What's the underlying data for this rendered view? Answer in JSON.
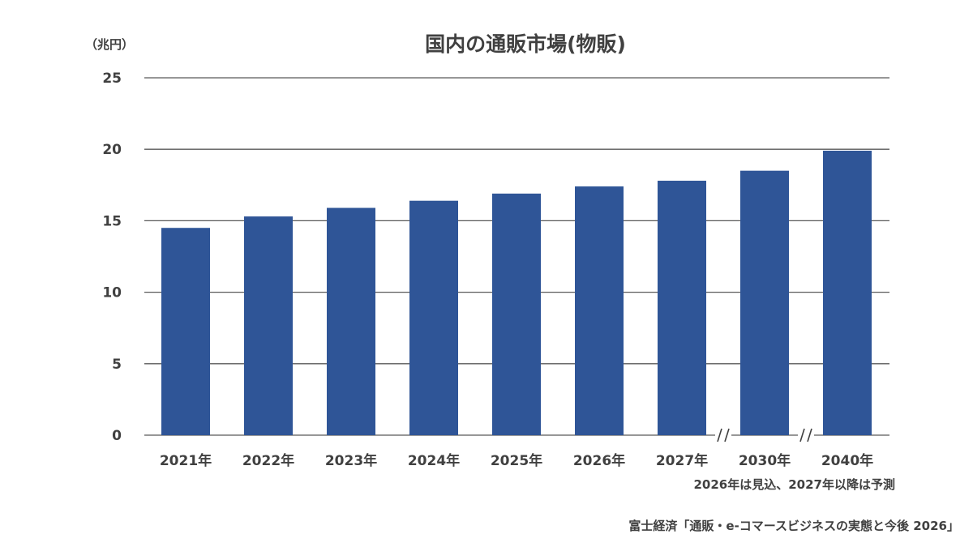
{
  "chart_data": {
    "type": "bar",
    "title": "国内の通販市場(物販)",
    "y_unit_label": "（兆円）",
    "categories": [
      "2021年",
      "2022年",
      "2023年",
      "2024年",
      "2025年",
      "2026年",
      "2027年",
      "2030年",
      "2040年"
    ],
    "series": [
      {
        "values": [
          14.5,
          15.3,
          15.9,
          16.4,
          16.9,
          17.4,
          17.8,
          18.5,
          19.9
        ]
      }
    ],
    "ylim": [
      0,
      25
    ],
    "yticks": [
      0,
      5,
      10,
      15,
      20,
      25
    ],
    "grid": true,
    "axis_breaks_after": [
      "2027年",
      "2030年"
    ],
    "bar_color": "#2f5597",
    "note": "2026年は見込、2027年以降は予測",
    "source": "富士経済「通販・e-コマースビジネスの実態と今後 2026」"
  }
}
